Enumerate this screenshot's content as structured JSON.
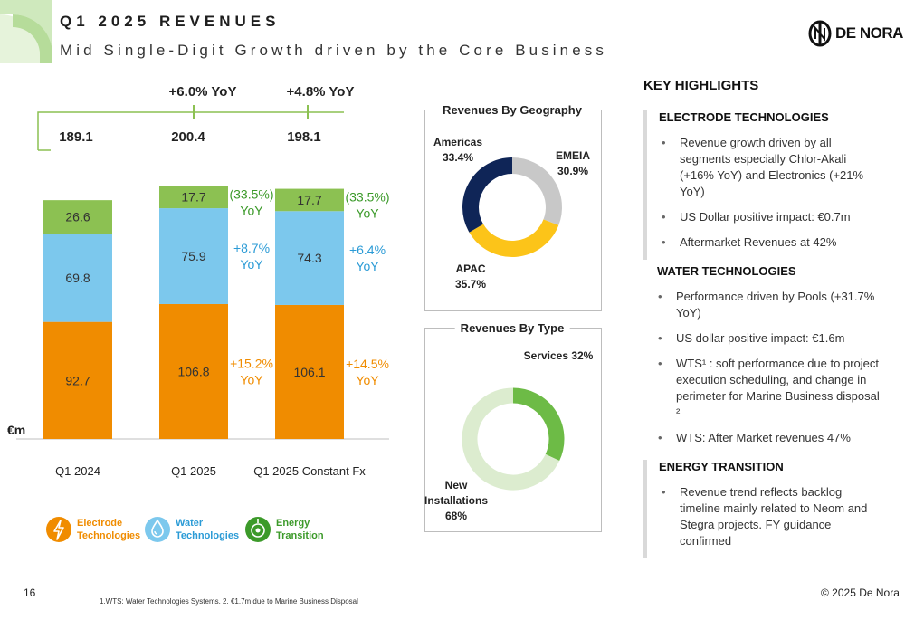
{
  "header": {
    "title": "Q1 2025 REVENUES",
    "subtitle": "Mid Single-Digit Growth driven by the Core Business",
    "logo_text": "DE NORA"
  },
  "colors": {
    "electrode": "#f08c00",
    "water": "#7cc8ed",
    "energy": "#8cc152",
    "navy": "#0f2557",
    "apac": "#fcc419",
    "emeia": "#c8c8c8",
    "services": "#6dbb46",
    "new_installations": "#dceccf",
    "growth_text": "#00a0d8",
    "water_growth_text": "#2b9bd6",
    "energy_growth_text": "#3c9a2a",
    "electrode_growth_text": "#f08c00"
  },
  "chart_data": [
    {
      "type": "bar",
      "stacked": true,
      "categories": [
        "Q1 2024",
        "Q1 2025",
        "Q1 2025 Constant Fx"
      ],
      "unit_label": "€m",
      "totals": [
        "189.1",
        "200.4",
        "198.1"
      ],
      "series": [
        {
          "name": "Electrode Technologies",
          "key": "electrode",
          "values": [
            92.7,
            106.8,
            106.1
          ],
          "labels": [
            "92.7",
            "106.8",
            "106.1"
          ]
        },
        {
          "name": "Water Technologies",
          "key": "water",
          "values": [
            69.8,
            75.9,
            74.3
          ],
          "labels": [
            "69.8",
            "75.9",
            "74.3"
          ]
        },
        {
          "name": "Energy Transition",
          "key": "energy",
          "values": [
            26.6,
            17.7,
            17.7
          ],
          "labels": [
            "26.6",
            "17.7",
            "17.7"
          ]
        }
      ],
      "yoy_total": [
        "+6.0% YoY",
        "+4.8% YoY"
      ],
      "yoy_segments": [
        {
          "column": 1,
          "segment": "energy",
          "lines": [
            "(33.5%)",
            "YoY"
          ]
        },
        {
          "column": 1,
          "segment": "water",
          "lines": [
            "+8.7%",
            "YoY"
          ]
        },
        {
          "column": 1,
          "segment": "electrode",
          "lines": [
            "+15.2%",
            "YoY"
          ]
        },
        {
          "column": 2,
          "segment": "energy",
          "lines": [
            "(33.5%)",
            "YoY"
          ]
        },
        {
          "column": 2,
          "segment": "water",
          "lines": [
            "+6.4%",
            "YoY"
          ]
        },
        {
          "column": 2,
          "segment": "electrode",
          "lines": [
            "+14.5%",
            "YoY"
          ]
        }
      ],
      "ylim": [
        0,
        215
      ]
    },
    {
      "type": "pie",
      "donut": true,
      "title": "Revenues By Geography",
      "slices": [
        {
          "label": "EMEIA",
          "value": 30.9,
          "display": "30.9%",
          "key": "emeia"
        },
        {
          "label": "APAC",
          "value": 35.7,
          "display": "35.7%",
          "key": "apac"
        },
        {
          "label": "Americas",
          "value": 33.4,
          "display": "33.4%",
          "key": "navy"
        }
      ]
    },
    {
      "type": "pie",
      "donut": true,
      "title": "Revenues By Type",
      "slices": [
        {
          "label": "Services",
          "value": 32,
          "display": "32%",
          "key": "services"
        },
        {
          "label": "New Installations",
          "value": 68,
          "display": "68%",
          "key": "new_installations"
        }
      ]
    }
  ],
  "legend": [
    {
      "lines": [
        "Electrode",
        "Technologies"
      ],
      "key": "electrode",
      "icon": "lightning-icon"
    },
    {
      "lines": [
        "Water",
        "Technologies"
      ],
      "key": "water",
      "icon": "water-drop-icon"
    },
    {
      "lines": [
        "Energy",
        "Transition"
      ],
      "key": "energy",
      "icon": "energy-icon"
    }
  ],
  "highlights": {
    "title": "KEY HIGHLIGHTS",
    "sections": [
      {
        "title": "ELECTRODE TECHNOLOGIES",
        "bullets": [
          "Revenue growth driven by all segments especially Chlor-Akali (+16% YoY) and Electronics (+21% YoY)",
          "US Dollar positive impact: €0.7m",
          "Aftermarket Revenues at 42%"
        ]
      },
      {
        "title": "WATER TECHNOLOGIES",
        "bullets": [
          "Performance driven by Pools (+31.7% YoY)",
          "US dollar positive impact: €1.6m",
          "WTS¹ : soft performance due to project execution scheduling, and change in perimeter for Marine Business disposal ²",
          "WTS: After Market revenues 47%"
        ]
      },
      {
        "title": "ENERGY TRANSITION",
        "bullets": [
          "Revenue trend reflects backlog timeline mainly related to Neom and Stegra projects.  FY guidance confirmed"
        ]
      }
    ]
  },
  "footer": {
    "page": "16",
    "note": "1.WTS: Water Technologies Systems. 2. €1.7m due to Marine Business Disposal",
    "copyright": "© 2025 De Nora"
  }
}
